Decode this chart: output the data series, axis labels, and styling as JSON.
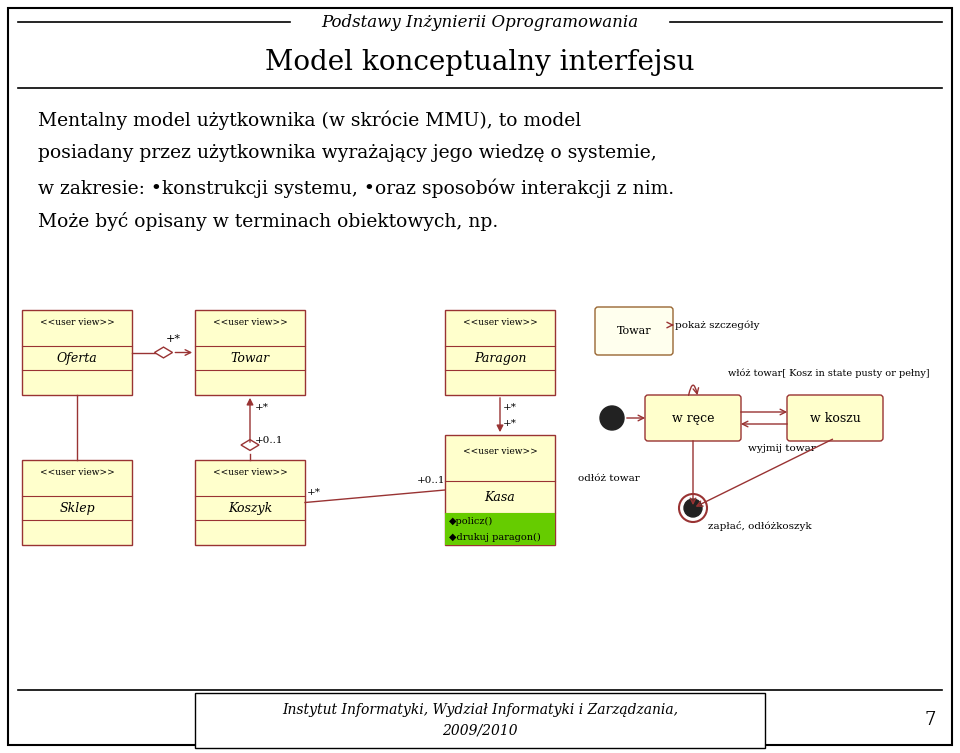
{
  "header_italic": "Podstawy Inżynierii Oprogramowania",
  "title": "Model konceptualny interfejsu",
  "body_lines": [
    "Mentalny model użytkownika (w skrócie MMU), to model",
    "posiadany przez użytkownika wyrażający jego wiedzę o systemie,",
    "w zakresie: •konstrukcji systemu, •oraz sposobów interakcji z nim.",
    "Może być opisany w terminach obiektowych, np."
  ],
  "footer_line1": "Instytut Informatyki, Wydział Informatyki i Zarządzania,",
  "footer_line2": "2009/2010",
  "page_number": "7",
  "bg_color": "#ffffff",
  "border_color": "#000000",
  "uml_fill": "#ffffcc",
  "uml_stroke": "#993333",
  "state_fill": "#ffffcc",
  "state_stroke": "#993333",
  "arrow_color": "#993333",
  "kasa_method_fill": "#66cc00"
}
